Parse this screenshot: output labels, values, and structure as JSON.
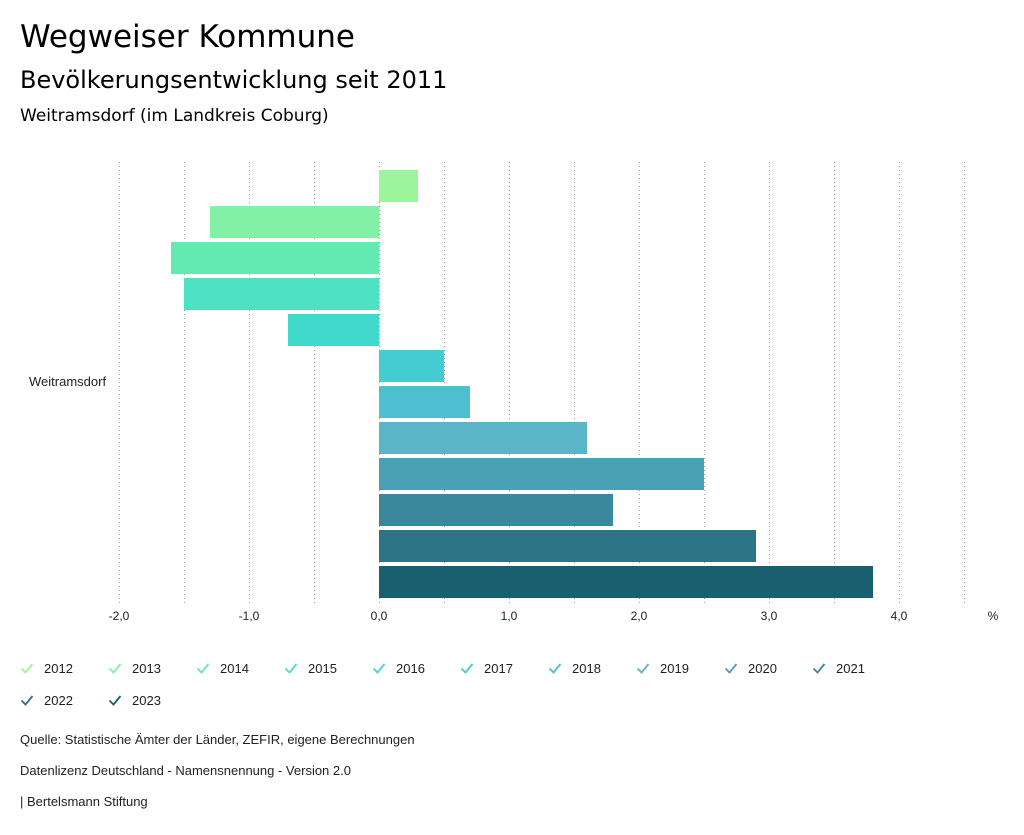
{
  "header": {
    "title": "Wegweiser Kommune",
    "subtitle": "Bevölkerungsentwicklung seit 2011",
    "region": "Weitramsdorf (im Landkreis Coburg)"
  },
  "chart_data": {
    "type": "bar",
    "orientation": "horizontal",
    "category": "Weitramsdorf",
    "xlim": [
      -2.0,
      4.0
    ],
    "tick_labels": [
      "-2,0",
      "-1,0",
      "0,0",
      "1,0",
      "2,0",
      "3,0",
      "4,0"
    ],
    "unit": "%",
    "series": [
      {
        "name": "2012",
        "value": 0.3,
        "color": "#9bf59a"
      },
      {
        "name": "2013",
        "value": -1.3,
        "color": "#82f1a6"
      },
      {
        "name": "2014",
        "value": -1.6,
        "color": "#63eab2"
      },
      {
        "name": "2015",
        "value": -1.5,
        "color": "#4ee2c2"
      },
      {
        "name": "2016",
        "value": -0.7,
        "color": "#40d9cc"
      },
      {
        "name": "2017",
        "value": 0.5,
        "color": "#43cdd2"
      },
      {
        "name": "2018",
        "value": 0.7,
        "color": "#4dc0d0"
      },
      {
        "name": "2019",
        "value": 1.6,
        "color": "#5bb5c8"
      },
      {
        "name": "2020",
        "value": 2.5,
        "color": "#4aa0b5"
      },
      {
        "name": "2021",
        "value": 1.8,
        "color": "#3b889c"
      },
      {
        "name": "2022",
        "value": 2.9,
        "color": "#2a7485"
      },
      {
        "name": "2023",
        "value": 3.8,
        "color": "#1a5f70"
      }
    ]
  },
  "footer": {
    "source": "Quelle: Statistische Ämter der Länder, ZEFIR, eigene Berechnungen",
    "license": "Datenlizenz Deutschland - Namensnennung - Version 2.0",
    "publisher": "| Bertelsmann Stiftung"
  }
}
